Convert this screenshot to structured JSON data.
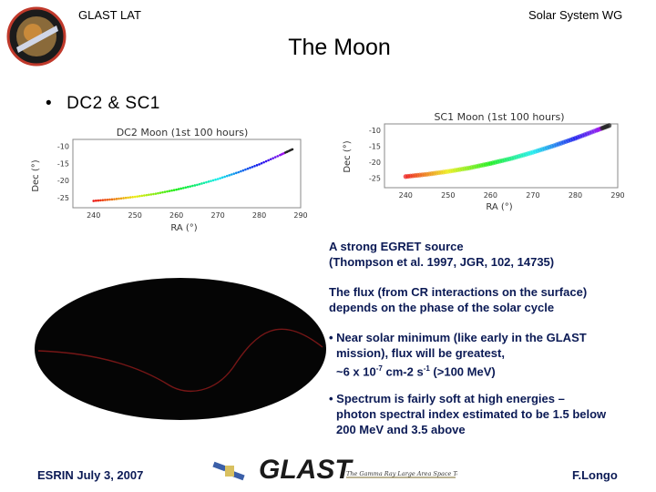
{
  "header": {
    "left": "GLAST LAT",
    "right": "Solar System WG"
  },
  "slide": {
    "title": "The Moon",
    "bullet": "DC2 & SC1"
  },
  "charts": {
    "left": {
      "title": "DC2 Moon (1st 100 hours)",
      "xlabel": "RA (°)",
      "ylabel": "Dec (°)",
      "xticks": [
        "240",
        "250",
        "260",
        "270",
        "280",
        "290"
      ],
      "yticks": [
        "-10",
        "-15",
        "-20",
        "-25"
      ]
    },
    "right": {
      "title": "SC1 Moon (1st 100 hours)",
      "xlabel": "RA (°)",
      "ylabel": "Dec (°)",
      "xticks": [
        "240",
        "250",
        "260",
        "270",
        "280",
        "290"
      ],
      "yticks": [
        "-10",
        "-15",
        "-20",
        "-25"
      ]
    }
  },
  "chart_data": [
    {
      "type": "scatter",
      "title": "DC2 Moon (1st 100 hours)",
      "xlabel": "RA (°)",
      "ylabel": "Dec (°)",
      "xlim": [
        235,
        290
      ],
      "ylim": [
        -28,
        -8
      ],
      "x": [
        240,
        245,
        250,
        255,
        260,
        265,
        270,
        275,
        280,
        285,
        288
      ],
      "y": [
        -26,
        -25.5,
        -24.8,
        -23.9,
        -22.7,
        -21.3,
        -19.6,
        -17.6,
        -15.3,
        -12.6,
        -10.9
      ]
    },
    {
      "type": "scatter",
      "title": "SC1 Moon (1st 100 hours)",
      "xlabel": "RA (°)",
      "ylabel": "Dec (°)",
      "xlim": [
        235,
        290
      ],
      "ylim": [
        -28,
        -8
      ],
      "x": [
        240,
        245,
        250,
        255,
        260,
        265,
        270,
        275,
        280,
        285,
        288
      ],
      "y": [
        -24.5,
        -23.8,
        -22.9,
        -21.8,
        -20.4,
        -18.8,
        -16.9,
        -14.8,
        -12.5,
        -10.0,
        -8.5
      ]
    }
  ],
  "text": {
    "p1": [
      "A strong EGRET source",
      "(Thompson et al. 1997, JGR, 102, 14735)"
    ],
    "p2": [
      "The flux (from CR interactions on the surface)",
      "depends on the phase of the solar cycle"
    ],
    "p3": {
      "l1": "• Near solar minimum (like early in the GLAST",
      "l2": "mission), flux will be greatest,",
      "l3a": "~6 x 10",
      "l3b": "-7",
      "l3c": " cm-2 s",
      "l3d": "-1",
      "l3e": " (>100 MeV)"
    },
    "p4": [
      "• Spectrum is fairly soft at high energies –",
      "photon spectral index estimated to be 1.5 below",
      "200 MeV and 3.5 above"
    ]
  },
  "footer": {
    "left": "ESRIN July 3, 2007",
    "logo": "GLAST",
    "tagline": "The Gamma Ray Large Area Space Telescope",
    "right": "F.Longo"
  },
  "colors": {
    "text_blue": "#0b1a55",
    "sky_map": "#000000",
    "moon_track": "#8b1a1a"
  }
}
